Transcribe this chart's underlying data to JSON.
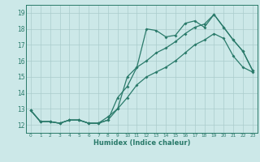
{
  "xlabel": "Humidex (Indice chaleur)",
  "bg_color": "#cce8e8",
  "line_color": "#2a7a6a",
  "grid_color": "#aacccc",
  "xlim": [
    -0.5,
    23.5
  ],
  "ylim": [
    11.5,
    19.5
  ],
  "xticks": [
    0,
    1,
    2,
    3,
    4,
    5,
    6,
    7,
    8,
    9,
    10,
    11,
    12,
    13,
    14,
    15,
    16,
    17,
    18,
    19,
    20,
    21,
    22,
    23
  ],
  "yticks": [
    12,
    13,
    14,
    15,
    16,
    17,
    18,
    19
  ],
  "line1_x": [
    0,
    1,
    2,
    3,
    4,
    5,
    6,
    7,
    8,
    9,
    10,
    11,
    12,
    13,
    14,
    15,
    16,
    17,
    18,
    19,
    20,
    21,
    22,
    23
  ],
  "line1_y": [
    12.9,
    12.2,
    12.2,
    12.1,
    12.3,
    12.3,
    12.1,
    12.1,
    12.3,
    13.7,
    14.4,
    15.6,
    18.0,
    17.9,
    17.5,
    17.6,
    18.35,
    18.5,
    18.1,
    18.9,
    18.1,
    17.3,
    16.6,
    15.4
  ],
  "line2_x": [
    0,
    1,
    2,
    3,
    4,
    5,
    6,
    7,
    8,
    9,
    10,
    11,
    12,
    13,
    14,
    15,
    16,
    17,
    18,
    19,
    20,
    21,
    22,
    23
  ],
  "line2_y": [
    12.9,
    12.2,
    12.2,
    12.1,
    12.3,
    12.3,
    12.1,
    12.1,
    12.3,
    13.0,
    15.0,
    15.6,
    16.0,
    16.5,
    16.8,
    17.2,
    17.7,
    18.1,
    18.3,
    18.9,
    18.1,
    17.3,
    16.6,
    15.4
  ],
  "line3_x": [
    0,
    1,
    2,
    3,
    4,
    5,
    6,
    7,
    8,
    9,
    10,
    11,
    12,
    13,
    14,
    15,
    16,
    17,
    18,
    19,
    20,
    21,
    22,
    23
  ],
  "line3_y": [
    12.9,
    12.2,
    12.2,
    12.1,
    12.3,
    12.3,
    12.1,
    12.1,
    12.5,
    13.0,
    13.7,
    14.5,
    15.0,
    15.3,
    15.6,
    16.0,
    16.5,
    17.0,
    17.3,
    17.7,
    17.4,
    16.3,
    15.6,
    15.3
  ]
}
